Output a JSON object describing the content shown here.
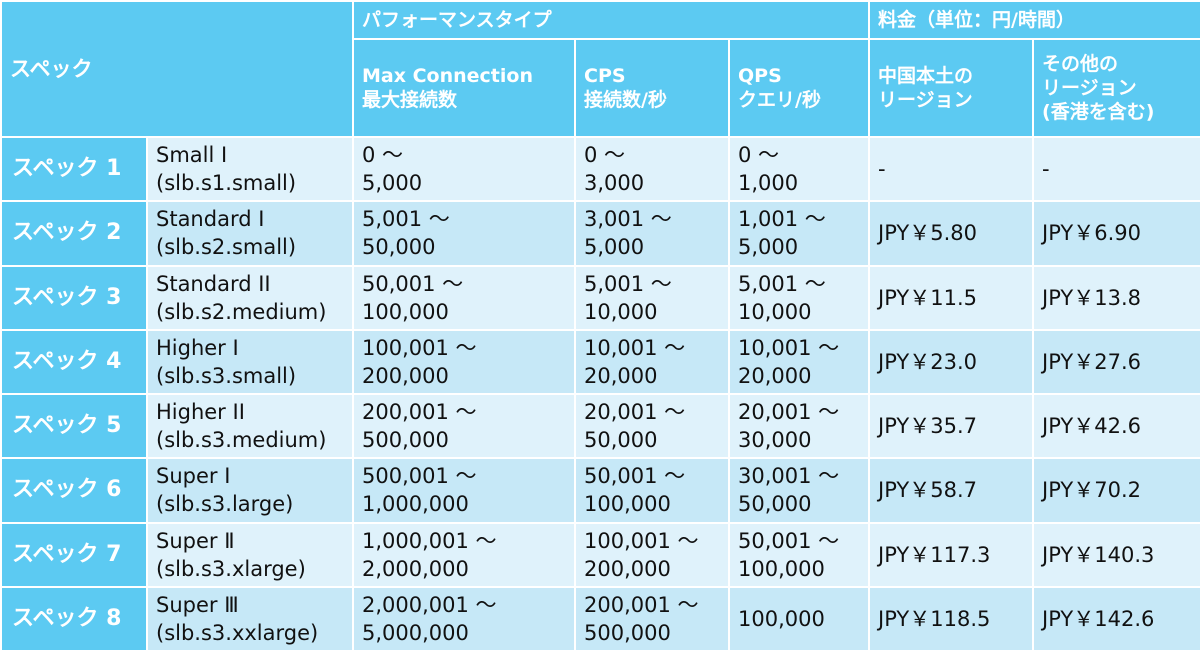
{
  "header": {
    "spec": "スペック",
    "performance_type": "パフォーマンスタイプ",
    "pricing": "料金（単位：円/時間）",
    "max_connection": [
      "Max Connection",
      "最大接続数"
    ],
    "cps": [
      "CPS",
      "接続数/秒"
    ],
    "qps": [
      "QPS",
      "クエリ/秒"
    ],
    "mainland": [
      "中国本土の",
      "リージョン"
    ],
    "other_regions": [
      "その他の",
      "リージョン",
      "(香港を含む)"
    ]
  },
  "rows": [
    {
      "spec": "スペック 1",
      "name": [
        "Small I",
        "(slb.s1.small)"
      ],
      "max_conn": [
        "0 ～",
        "5,000"
      ],
      "cps": [
        "0 ～",
        "3,000"
      ],
      "qps": [
        "0 ～",
        "1,000"
      ],
      "price_cn": "-",
      "price_other": "-"
    },
    {
      "spec": "スペック 2",
      "name": [
        "Standard I",
        "(slb.s2.small)"
      ],
      "max_conn": [
        "5,001 ～",
        "50,000"
      ],
      "cps": [
        "3,001 ～",
        "5,000"
      ],
      "qps": [
        "1,001 ～",
        "5,000"
      ],
      "price_cn": "JPY￥5.80",
      "price_other": "JPY￥6.90"
    },
    {
      "spec": "スペック 3",
      "name": [
        "Standard II",
        "(slb.s2.medium)"
      ],
      "max_conn": [
        "50,001 ～",
        "100,000"
      ],
      "cps": [
        "5,001 ～",
        "10,000"
      ],
      "qps": [
        "5,001 ～",
        "10,000"
      ],
      "price_cn": "JPY￥11.5",
      "price_other": "JPY￥13.8"
    },
    {
      "spec": "スペック 4",
      "name": [
        "Higher I",
        "(slb.s3.small)"
      ],
      "max_conn": [
        "100,001 ～",
        "200,000"
      ],
      "cps": [
        "10,001 ～",
        "20,000"
      ],
      "qps": [
        "10,001 ～",
        "20,000"
      ],
      "price_cn": "JPY￥23.0",
      "price_other": "JPY￥27.6"
    },
    {
      "spec": "スペック 5",
      "name": [
        "Higher II",
        "(slb.s3.medium)"
      ],
      "max_conn": [
        "200,001 ～",
        "500,000"
      ],
      "cps": [
        "20,001 ～",
        "50,000"
      ],
      "qps": [
        "20,001 ～",
        "30,000"
      ],
      "price_cn": "JPY￥35.7",
      "price_other": "JPY￥42.6"
    },
    {
      "spec": "スペック 6",
      "name": [
        "Super I",
        "(slb.s3.large)"
      ],
      "max_conn": [
        "500,001 ～",
        "1,000,000"
      ],
      "cps": [
        "50,001 ～",
        "100,000"
      ],
      "qps": [
        "30,001 ～",
        "50,000"
      ],
      "price_cn": "JPY￥58.7",
      "price_other": "JPY￥70.2"
    },
    {
      "spec": "スペック 7",
      "name": [
        "Super Ⅱ",
        "(slb.s3.xlarge)"
      ],
      "max_conn": [
        "1,000,001 ～",
        "2,000,000"
      ],
      "cps": [
        "100,001 ～",
        "200,000"
      ],
      "qps": [
        "50,001 ～",
        "100,000"
      ],
      "price_cn": "JPY￥117.3",
      "price_other": "JPY￥140.3"
    },
    {
      "spec": "スペック 8",
      "name": [
        "Super Ⅲ",
        "(slb.s3.xxlarge)"
      ],
      "max_conn": [
        "2,000,001 ～",
        "5,000,000"
      ],
      "cps": [
        "200,001 ～",
        "500,000"
      ],
      "qps": [
        "100,000"
      ],
      "price_cn": "JPY￥118.5",
      "price_other": "JPY￥142.6"
    }
  ]
}
